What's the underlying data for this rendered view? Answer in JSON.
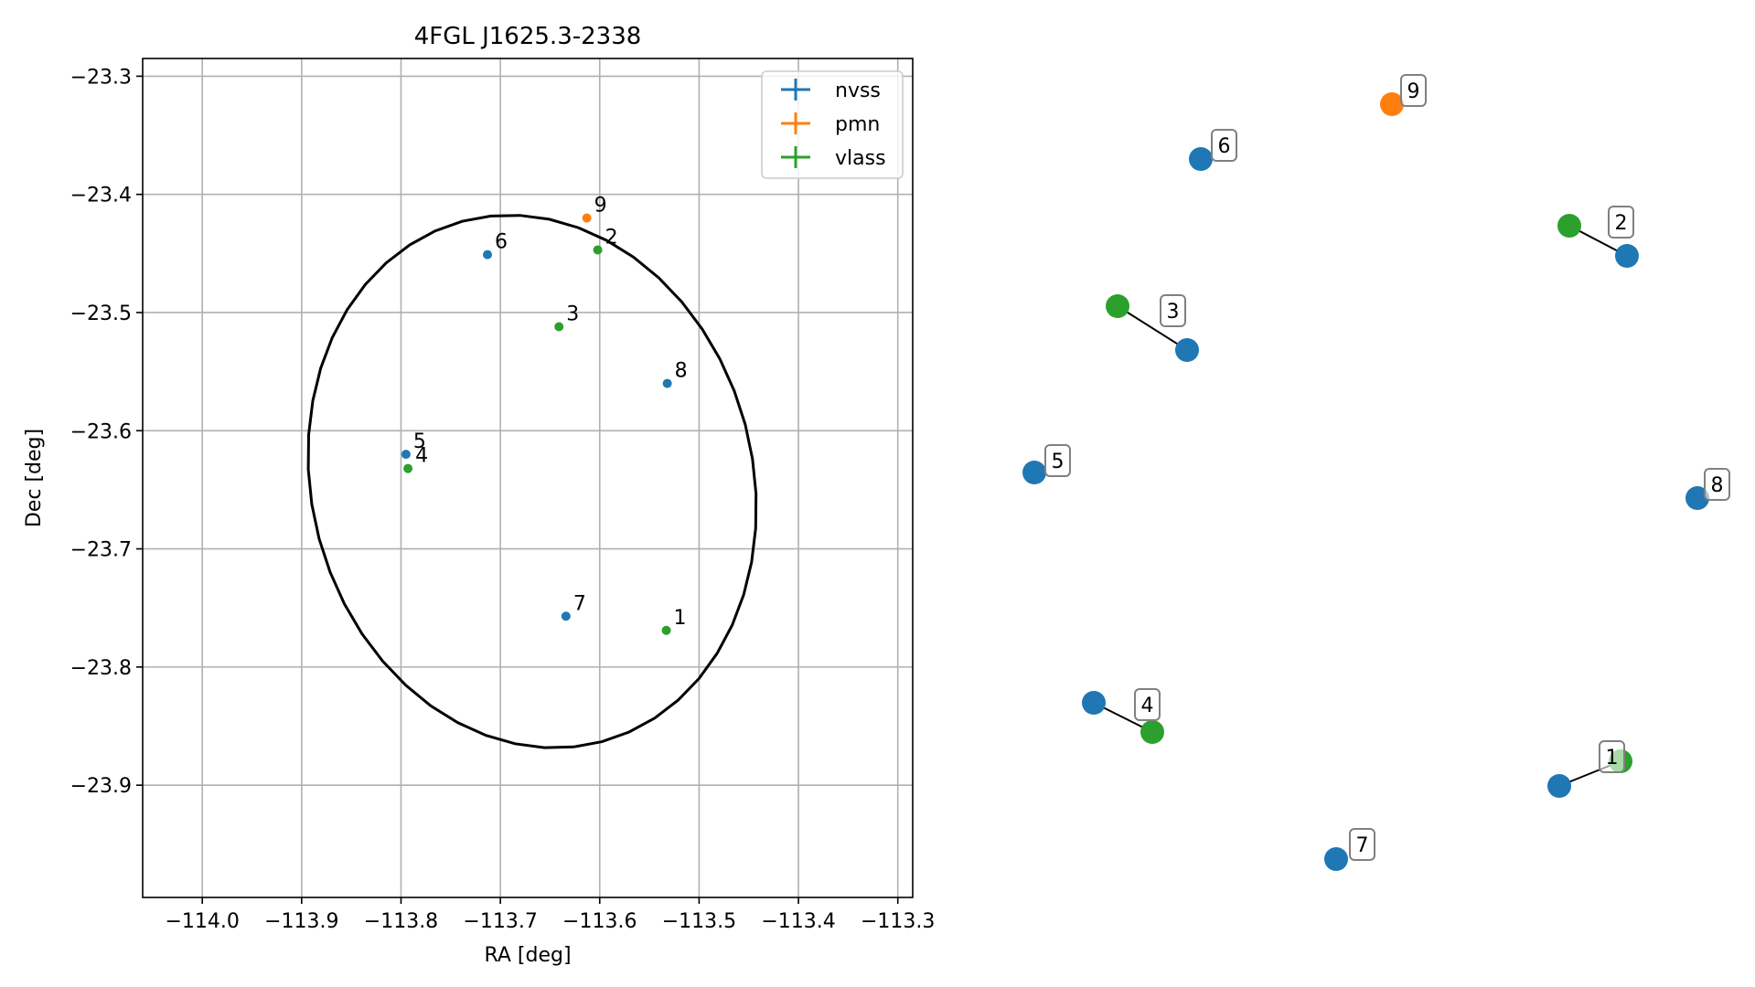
{
  "chart_data": [
    {
      "type": "scatter",
      "title": "4FGL J1625.3-2338",
      "xlabel": "RA [deg]",
      "ylabel": "Dec [deg]",
      "xlim": [
        -114.06,
        -113.285
      ],
      "ylim": [
        -23.995,
        -23.285
      ],
      "xticks": [
        -114.0,
        -113.9,
        -113.8,
        -113.7,
        -113.6,
        -113.5,
        -113.4,
        -113.3
      ],
      "yticks": [
        -23.3,
        -23.4,
        -23.5,
        -23.6,
        -23.7,
        -23.8,
        -23.9
      ],
      "xtick_labels": [
        "−114.0",
        "−113.9",
        "−113.8",
        "−113.7",
        "−113.6",
        "−113.5",
        "−113.4",
        "−113.3"
      ],
      "ytick_labels": [
        "−23.3",
        "−23.4",
        "−23.5",
        "−23.6",
        "−23.7",
        "−23.8",
        "−23.9"
      ],
      "grid": true,
      "legend": "top-right",
      "series": [
        {
          "name": "nvss",
          "color": "#1f77b4",
          "points": [
            {
              "label": "5",
              "x": -113.795,
              "y": -23.62
            },
            {
              "label": "6",
              "x": -113.713,
              "y": -23.451
            },
            {
              "label": "7",
              "x": -113.634,
              "y": -23.757
            },
            {
              "label": "8",
              "x": -113.532,
              "y": -23.56
            }
          ]
        },
        {
          "name": "pmn",
          "color": "#ff7f0e",
          "points": [
            {
              "label": "9",
              "x": -113.613,
              "y": -23.42
            }
          ]
        },
        {
          "name": "vlass",
          "color": "#2ca02c",
          "points": [
            {
              "label": "1",
              "x": -113.533,
              "y": -23.769
            },
            {
              "label": "2",
              "x": -113.602,
              "y": -23.447
            },
            {
              "label": "3",
              "x": -113.641,
              "y": -23.512
            },
            {
              "label": "4",
              "x": -113.793,
              "y": -23.632
            }
          ]
        }
      ],
      "ellipse": {
        "center_x": -113.668,
        "center_y": -23.643,
        "half_width": 0.222,
        "half_height": 0.228,
        "color": "#000000"
      }
    },
    {
      "type": "scatter",
      "description": "label-arrangement diagram (no axes)",
      "markers": [
        {
          "label": "1",
          "series": "nvss",
          "pair_with": "1",
          "color": "#1f77b4"
        },
        {
          "label": "1",
          "series": "vlass",
          "color": "#2ca02c"
        },
        {
          "label": "2",
          "series": "vlass",
          "color": "#2ca02c"
        },
        {
          "label": "2",
          "series": "nvss",
          "color": "#1f77b4"
        },
        {
          "label": "3",
          "series": "vlass",
          "color": "#2ca02c"
        },
        {
          "label": "3",
          "series": "nvss",
          "color": "#1f77b4"
        },
        {
          "label": "4",
          "series": "nvss",
          "color": "#1f77b4"
        },
        {
          "label": "4",
          "series": "vlass",
          "color": "#2ca02c"
        },
        {
          "label": "5",
          "series": "nvss",
          "color": "#1f77b4"
        },
        {
          "label": "6",
          "series": "nvss",
          "color": "#1f77b4"
        },
        {
          "label": "7",
          "series": "nvss",
          "color": "#1f77b4"
        },
        {
          "label": "8",
          "series": "nvss",
          "color": "#1f77b4"
        },
        {
          "label": "9",
          "series": "pmn",
          "color": "#ff7f0e"
        }
      ]
    }
  ]
}
